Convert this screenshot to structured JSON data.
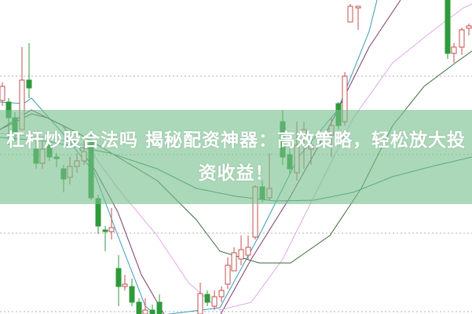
{
  "headline": "杠杆炒股合法吗 揭秘配资神器：高效策略，轻松放大投资收益！",
  "colors": {
    "banner": "#78c08c",
    "up_candle": "#c0504d",
    "down_candle": "#2e9a3a",
    "grid": "#b0b0b0",
    "ma_lines": [
      "#3a9ab8",
      "#7a3a6a",
      "#e0a8e8",
      "#3a6a3a",
      "#2e8a78"
    ]
  },
  "chart_data": {
    "type": "candlestick",
    "grid": true,
    "note_axes": "no axis labels or tick values shown"
  }
}
